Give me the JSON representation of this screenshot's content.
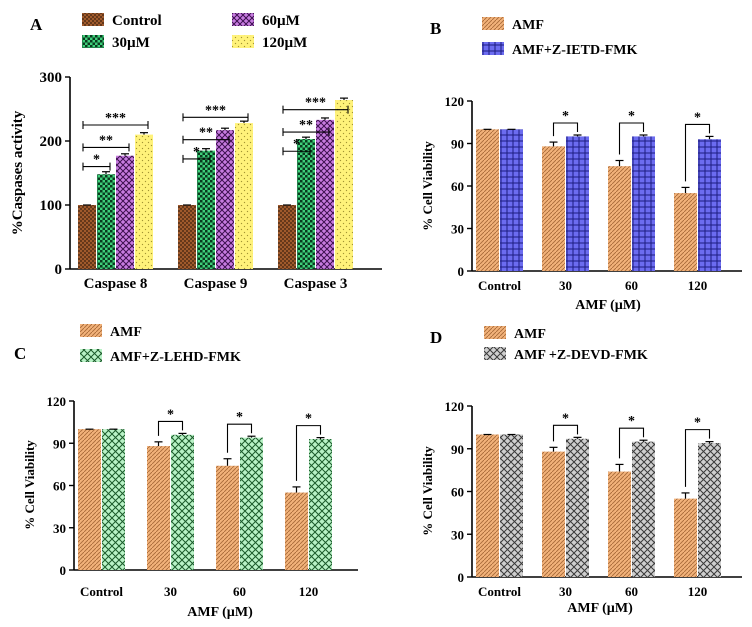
{
  "panels": {
    "A": {
      "label": "A"
    },
    "B": {
      "label": "B"
    },
    "C": {
      "label": "C"
    },
    "D": {
      "label": "D"
    }
  },
  "colors": {
    "control_fill": "#a05a2c",
    "control_dot": "#3b1f0c",
    "g30_fill": "#3ecf7a",
    "g30_dot": "#0a3a1e",
    "g60_fill": "#c77be0",
    "g60_dot": "#3d1050",
    "g120_fill": "#fff27a",
    "g120_dot": "#8a7a20",
    "amf_fill": "#f2b27a",
    "amf_line": "#a86a38",
    "ietd_fill": "#6c6cf0",
    "ietd_line": "#1d1d80",
    "lehd_fill": "#b8f2c6",
    "lehd_line": "#1a5a2a",
    "devd_fill": "#cfcfcf",
    "devd_line": "#3a3a3a",
    "axis": "#000000",
    "error": "#000000"
  },
  "chart_data": [
    {
      "id": "A",
      "type": "bar",
      "title": "",
      "ylabel": "%Caspases activity",
      "xlabel": "",
      "ylim": [
        0,
        300
      ],
      "yticks": [
        "0",
        "100",
        "200",
        "300"
      ],
      "categories": [
        "Caspase 8",
        "Caspase 9",
        "Caspase 3"
      ],
      "legend": [
        "Control",
        "30µM",
        "60µM",
        "120µM"
      ],
      "legend_position": "top",
      "series": [
        {
          "name": "Control",
          "values": [
            100,
            100,
            100
          ],
          "errors": [
            0,
            0,
            0
          ]
        },
        {
          "name": "30µM",
          "values": [
            148,
            185,
            203
          ],
          "errors": [
            4,
            3,
            3
          ]
        },
        {
          "name": "60µM",
          "values": [
            177,
            217,
            233
          ],
          "errors": [
            3,
            3,
            3
          ]
        },
        {
          "name": "120µM",
          "values": [
            210,
            228,
            264
          ],
          "errors": [
            3,
            3,
            3
          ]
        }
      ],
      "significance": [
        {
          "category": 0,
          "labels": [
            "*",
            "**",
            "***"
          ]
        },
        {
          "category": 1,
          "labels": [
            "*",
            "**",
            "***"
          ]
        },
        {
          "category": 2,
          "labels": [
            "*",
            "**",
            "***"
          ]
        }
      ]
    },
    {
      "id": "B",
      "type": "bar",
      "title": "",
      "ylabel": "% Cell Viability",
      "xlabel": "AMF (µM)",
      "ylim": [
        0,
        120
      ],
      "yticks": [
        "0",
        "30",
        "60",
        "90",
        "120"
      ],
      "categories": [
        "Control",
        "30",
        "60",
        "120"
      ],
      "legend": [
        "AMF",
        "AMF+Z-IETD-FMK"
      ],
      "legend_position": "top",
      "series": [
        {
          "name": "AMF",
          "values": [
            100,
            88,
            74,
            55
          ],
          "errors": [
            0,
            3,
            4,
            4
          ]
        },
        {
          "name": "AMF+Z-IETD-FMK",
          "values": [
            100,
            95,
            95,
            93
          ],
          "errors": [
            0,
            1,
            1,
            2
          ]
        }
      ],
      "significance": [
        {
          "category": 1,
          "labels": [
            "*"
          ]
        },
        {
          "category": 2,
          "labels": [
            "*"
          ]
        },
        {
          "category": 3,
          "labels": [
            "*"
          ]
        }
      ]
    },
    {
      "id": "C",
      "type": "bar",
      "title": "",
      "ylabel": "% Cell Viability",
      "xlabel": "AMF (µM)",
      "ylim": [
        0,
        120
      ],
      "yticks": [
        "0",
        "30",
        "60",
        "90",
        "120"
      ],
      "categories": [
        "Control",
        "30",
        "60",
        "120"
      ],
      "legend": [
        "AMF",
        "AMF+Z-LEHD-FMK"
      ],
      "legend_position": "top",
      "series": [
        {
          "name": "AMF",
          "values": [
            100,
            88,
            74,
            55
          ],
          "errors": [
            0,
            3,
            5,
            4
          ]
        },
        {
          "name": "AMF+Z-LEHD-FMK",
          "values": [
            100,
            96,
            94,
            93
          ],
          "errors": [
            0,
            1,
            1,
            1
          ]
        }
      ],
      "significance": [
        {
          "category": 1,
          "labels": [
            "*"
          ]
        },
        {
          "category": 2,
          "labels": [
            "*"
          ]
        },
        {
          "category": 3,
          "labels": [
            "*"
          ]
        }
      ]
    },
    {
      "id": "D",
      "type": "bar",
      "title": "",
      "ylabel": "% Cell Viability",
      "xlabel": "AMF (µM)",
      "ylim": [
        0,
        120
      ],
      "yticks": [
        "0",
        "30",
        "60",
        "90",
        "120"
      ],
      "categories": [
        "Control",
        "30",
        "60",
        "120"
      ],
      "legend": [
        "AMF",
        "AMF +Z-DEVD-FMK"
      ],
      "legend_position": "top",
      "series": [
        {
          "name": "AMF",
          "values": [
            100,
            88,
            74,
            55
          ],
          "errors": [
            0,
            3,
            5,
            4
          ]
        },
        {
          "name": "AMF +Z-DEVD-FMK",
          "values": [
            100,
            97,
            95,
            94
          ],
          "errors": [
            0,
            1,
            1,
            1
          ]
        }
      ],
      "significance": [
        {
          "category": 1,
          "labels": [
            "*"
          ]
        },
        {
          "category": 2,
          "labels": [
            "*"
          ]
        },
        {
          "category": 3,
          "labels": [
            "*"
          ]
        }
      ]
    }
  ]
}
